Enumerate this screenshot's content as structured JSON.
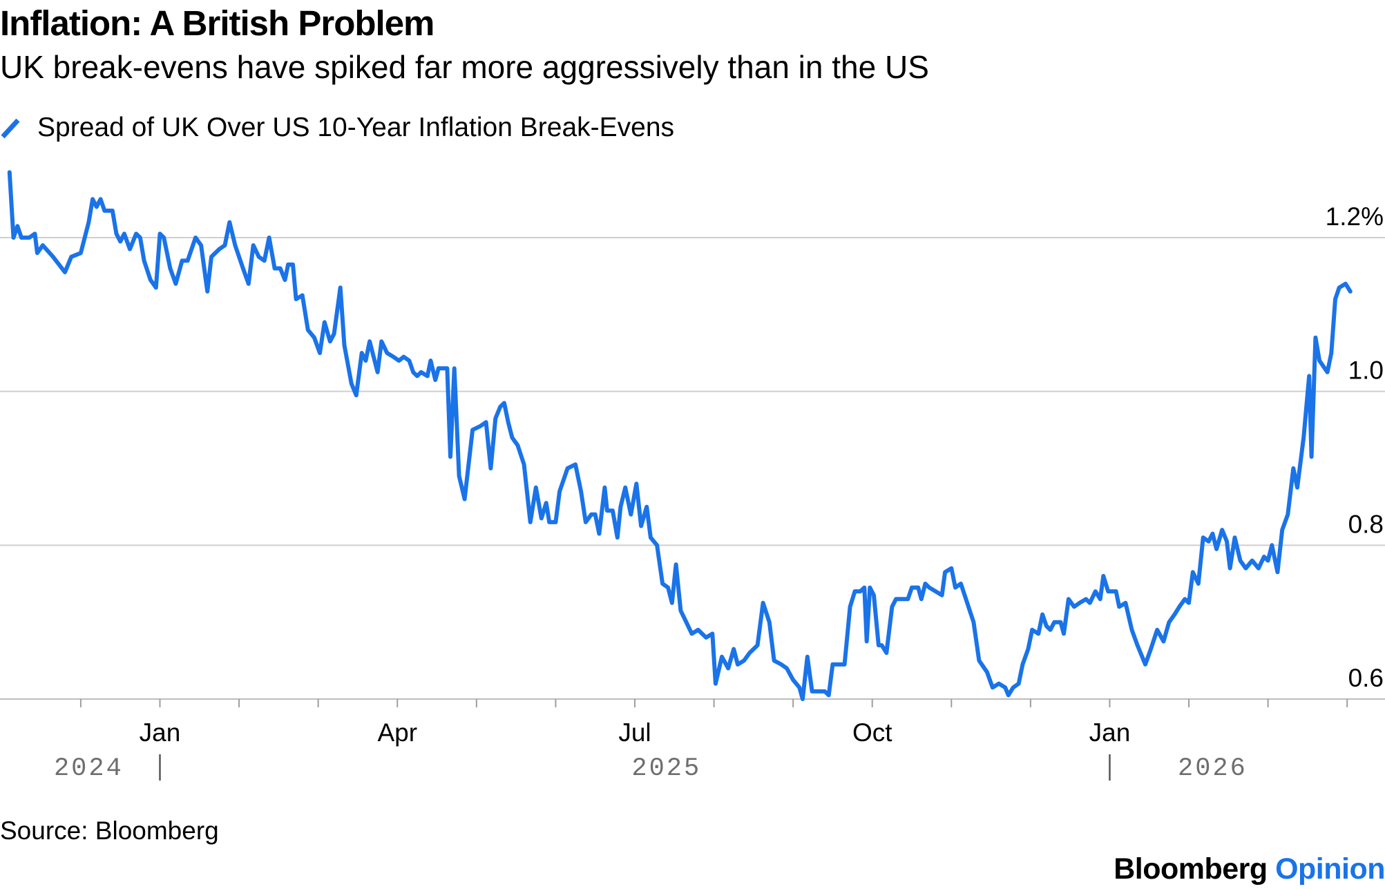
{
  "title": "Inflation: A British Problem",
  "subtitle": "UK break-evens have spiked far more aggressively than in the US",
  "legend": {
    "label": "Spread of UK Over US 10-Year Inflation Break-Evens",
    "color": "#1a73e8"
  },
  "source": "Source: Bloomberg",
  "brand": {
    "name": "Bloomberg",
    "suffix": "Opinion"
  },
  "chart_data": {
    "type": "line",
    "title": "Inflation: A British Problem",
    "subtitle": "UK break-evens have spiked far more aggressively than in the US",
    "xlabel": "",
    "ylabel": "",
    "ylim": [
      0.6,
      1.3
    ],
    "y_ticks": [
      {
        "value": 0.6,
        "label": "0.6"
      },
      {
        "value": 0.8,
        "label": "0.8"
      },
      {
        "value": 1.0,
        "label": "1.0"
      },
      {
        "value": 1.2,
        "label": "1.2%"
      }
    ],
    "x_range_months": [
      -1.9,
      26.4
    ],
    "x_minor_ticks_months": [
      -1,
      0,
      1,
      2,
      3,
      4,
      5,
      6,
      7,
      8,
      9,
      10,
      11,
      12,
      13,
      14,
      15,
      16,
      17,
      18,
      19,
      20,
      21,
      22,
      23,
      24,
      25,
      26
    ],
    "x_month_labels": [
      {
        "label": "Jan",
        "month": 0
      },
      {
        "label": "Apr",
        "month": 3
      },
      {
        "label": "Jul",
        "month": 6
      },
      {
        "label": "Oct",
        "month": 9
      },
      {
        "label": "Jan",
        "month": 12
      }
    ],
    "x_year_labels": [
      {
        "label": "2024",
        "month": -0.9
      },
      {
        "label": "2025",
        "month": 6.4
      },
      {
        "label": "2026",
        "month": 13.3
      }
    ],
    "x_year_separators_months": [
      0,
      12
    ],
    "grid": true,
    "legend_position": "top-left",
    "series": [
      {
        "name": "Spread of UK Over US 10-Year Inflation Break-Evens",
        "color": "#1a73e8",
        "points": [
          [
            -1.9,
            1.285
          ],
          [
            -1.85,
            1.2
          ],
          [
            -1.8,
            1.215
          ],
          [
            -1.75,
            1.2
          ],
          [
            -1.65,
            1.2
          ],
          [
            -1.58,
            1.205
          ],
          [
            -1.55,
            1.18
          ],
          [
            -1.48,
            1.19
          ],
          [
            -1.35,
            1.175
          ],
          [
            -1.2,
            1.155
          ],
          [
            -1.12,
            1.175
          ],
          [
            -1.0,
            1.18
          ],
          [
            -0.9,
            1.22
          ],
          [
            -0.85,
            1.25
          ],
          [
            -0.8,
            1.24
          ],
          [
            -0.75,
            1.25
          ],
          [
            -0.7,
            1.235
          ],
          [
            -0.6,
            1.235
          ],
          [
            -0.55,
            1.205
          ],
          [
            -0.5,
            1.195
          ],
          [
            -0.45,
            1.205
          ],
          [
            -0.38,
            1.185
          ],
          [
            -0.3,
            1.205
          ],
          [
            -0.25,
            1.2
          ],
          [
            -0.2,
            1.17
          ],
          [
            -0.12,
            1.145
          ],
          [
            -0.05,
            1.135
          ],
          [
            0.0,
            1.205
          ],
          [
            0.05,
            1.2
          ],
          [
            0.13,
            1.16
          ],
          [
            0.2,
            1.14
          ],
          [
            0.28,
            1.17
          ],
          [
            0.35,
            1.17
          ],
          [
            0.45,
            1.2
          ],
          [
            0.52,
            1.19
          ],
          [
            0.6,
            1.13
          ],
          [
            0.65,
            1.175
          ],
          [
            0.75,
            1.185
          ],
          [
            0.82,
            1.19
          ],
          [
            0.88,
            1.22
          ],
          [
            0.95,
            1.19
          ],
          [
            1.05,
            1.16
          ],
          [
            1.12,
            1.14
          ],
          [
            1.18,
            1.19
          ],
          [
            1.25,
            1.175
          ],
          [
            1.32,
            1.17
          ],
          [
            1.38,
            1.2
          ],
          [
            1.45,
            1.16
          ],
          [
            1.52,
            1.16
          ],
          [
            1.58,
            1.145
          ],
          [
            1.62,
            1.165
          ],
          [
            1.68,
            1.165
          ],
          [
            1.72,
            1.12
          ],
          [
            1.8,
            1.125
          ],
          [
            1.87,
            1.08
          ],
          [
            1.95,
            1.07
          ],
          [
            2.02,
            1.05
          ],
          [
            2.08,
            1.09
          ],
          [
            2.15,
            1.065
          ],
          [
            2.2,
            1.075
          ],
          [
            2.28,
            1.135
          ],
          [
            2.33,
            1.06
          ],
          [
            2.42,
            1.01
          ],
          [
            2.48,
            0.995
          ],
          [
            2.55,
            1.05
          ],
          [
            2.6,
            1.04
          ],
          [
            2.65,
            1.065
          ],
          [
            2.7,
            1.045
          ],
          [
            2.75,
            1.025
          ],
          [
            2.8,
            1.065
          ],
          [
            2.87,
            1.05
          ],
          [
            2.95,
            1.045
          ],
          [
            3.02,
            1.04
          ],
          [
            3.08,
            1.045
          ],
          [
            3.15,
            1.04
          ],
          [
            3.2,
            1.025
          ],
          [
            3.25,
            1.02
          ],
          [
            3.3,
            1.025
          ],
          [
            3.38,
            1.02
          ],
          [
            3.42,
            1.04
          ],
          [
            3.48,
            1.015
          ],
          [
            3.52,
            1.03
          ],
          [
            3.58,
            1.03
          ],
          [
            3.63,
            1.03
          ],
          [
            3.67,
            0.915
          ],
          [
            3.72,
            1.03
          ],
          [
            3.78,
            0.89
          ],
          [
            3.85,
            0.86
          ],
          [
            3.95,
            0.95
          ],
          [
            4.05,
            0.955
          ],
          [
            4.12,
            0.96
          ],
          [
            4.18,
            0.9
          ],
          [
            4.24,
            0.965
          ],
          [
            4.3,
            0.98
          ],
          [
            4.35,
            0.985
          ],
          [
            4.4,
            0.96
          ],
          [
            4.45,
            0.94
          ],
          [
            4.52,
            0.93
          ],
          [
            4.6,
            0.905
          ],
          [
            4.68,
            0.83
          ],
          [
            4.75,
            0.875
          ],
          [
            4.82,
            0.835
          ],
          [
            4.88,
            0.855
          ],
          [
            4.92,
            0.83
          ],
          [
            5.0,
            0.83
          ],
          [
            5.05,
            0.87
          ],
          [
            5.15,
            0.9
          ],
          [
            5.25,
            0.905
          ],
          [
            5.32,
            0.87
          ],
          [
            5.38,
            0.83
          ],
          [
            5.45,
            0.84
          ],
          [
            5.5,
            0.84
          ],
          [
            5.55,
            0.815
          ],
          [
            5.62,
            0.875
          ],
          [
            5.65,
            0.845
          ],
          [
            5.72,
            0.845
          ],
          [
            5.78,
            0.81
          ],
          [
            5.82,
            0.85
          ],
          [
            5.88,
            0.875
          ],
          [
            5.95,
            0.84
          ],
          [
            6.02,
            0.88
          ],
          [
            6.08,
            0.825
          ],
          [
            6.15,
            0.85
          ],
          [
            6.2,
            0.81
          ],
          [
            6.28,
            0.8
          ],
          [
            6.35,
            0.75
          ],
          [
            6.42,
            0.745
          ],
          [
            6.47,
            0.725
          ],
          [
            6.52,
            0.775
          ],
          [
            6.58,
            0.715
          ],
          [
            6.65,
            0.7
          ],
          [
            6.72,
            0.685
          ],
          [
            6.8,
            0.69
          ],
          [
            6.9,
            0.68
          ],
          [
            6.98,
            0.685
          ],
          [
            7.02,
            0.62
          ],
          [
            7.1,
            0.655
          ],
          [
            7.18,
            0.64
          ],
          [
            7.25,
            0.665
          ],
          [
            7.3,
            0.645
          ],
          [
            7.38,
            0.65
          ],
          [
            7.45,
            0.66
          ],
          [
            7.55,
            0.67
          ],
          [
            7.62,
            0.725
          ],
          [
            7.7,
            0.7
          ],
          [
            7.76,
            0.65
          ],
          [
            7.85,
            0.645
          ],
          [
            7.92,
            0.64
          ],
          [
            8.0,
            0.625
          ],
          [
            8.08,
            0.615
          ],
          [
            8.12,
            0.6
          ],
          [
            8.18,
            0.655
          ],
          [
            8.24,
            0.61
          ],
          [
            8.3,
            0.61
          ],
          [
            8.4,
            0.61
          ],
          [
            8.45,
            0.605
          ],
          [
            8.5,
            0.645
          ],
          [
            8.55,
            0.645
          ],
          [
            8.65,
            0.645
          ],
          [
            8.72,
            0.72
          ],
          [
            8.78,
            0.74
          ],
          [
            8.85,
            0.74
          ],
          [
            8.9,
            0.745
          ],
          [
            8.93,
            0.675
          ],
          [
            8.97,
            0.745
          ],
          [
            9.02,
            0.735
          ],
          [
            9.08,
            0.67
          ],
          [
            9.12,
            0.67
          ],
          [
            9.18,
            0.66
          ],
          [
            9.25,
            0.72
          ],
          [
            9.3,
            0.73
          ],
          [
            9.38,
            0.73
          ],
          [
            9.45,
            0.73
          ],
          [
            9.5,
            0.745
          ],
          [
            9.58,
            0.745
          ],
          [
            9.62,
            0.73
          ],
          [
            9.67,
            0.75
          ],
          [
            9.72,
            0.745
          ],
          [
            9.8,
            0.74
          ],
          [
            9.88,
            0.735
          ],
          [
            9.92,
            0.765
          ],
          [
            10.0,
            0.77
          ],
          [
            10.05,
            0.745
          ],
          [
            10.12,
            0.75
          ],
          [
            10.2,
            0.725
          ],
          [
            10.28,
            0.7
          ],
          [
            10.35,
            0.65
          ],
          [
            10.45,
            0.635
          ],
          [
            10.52,
            0.615
          ],
          [
            10.6,
            0.62
          ],
          [
            10.68,
            0.615
          ],
          [
            10.72,
            0.605
          ],
          [
            10.78,
            0.615
          ],
          [
            10.85,
            0.62
          ],
          [
            10.9,
            0.645
          ],
          [
            10.97,
            0.665
          ],
          [
            11.02,
            0.69
          ],
          [
            11.1,
            0.685
          ],
          [
            11.15,
            0.71
          ],
          [
            11.2,
            0.695
          ],
          [
            11.25,
            0.69
          ],
          [
            11.3,
            0.7
          ],
          [
            11.38,
            0.7
          ],
          [
            11.42,
            0.685
          ],
          [
            11.48,
            0.73
          ],
          [
            11.55,
            0.72
          ],
          [
            11.62,
            0.725
          ],
          [
            11.7,
            0.73
          ],
          [
            11.75,
            0.725
          ],
          [
            11.82,
            0.74
          ],
          [
            11.88,
            0.73
          ],
          [
            11.92,
            0.76
          ],
          [
            11.98,
            0.74
          ],
          [
            12.08,
            0.74
          ],
          [
            12.12,
            0.72
          ],
          [
            12.2,
            0.725
          ],
          [
            12.28,
            0.69
          ],
          [
            12.35,
            0.67
          ],
          [
            12.45,
            0.645
          ],
          [
            12.52,
            0.665
          ],
          [
            12.6,
            0.69
          ],
          [
            12.68,
            0.675
          ],
          [
            12.75,
            0.7
          ],
          [
            12.82,
            0.71
          ],
          [
            12.88,
            0.72
          ],
          [
            12.95,
            0.73
          ],
          [
            13.0,
            0.725
          ],
          [
            13.05,
            0.765
          ],
          [
            13.12,
            0.75
          ],
          [
            13.18,
            0.81
          ],
          [
            13.25,
            0.805
          ],
          [
            13.3,
            0.815
          ],
          [
            13.35,
            0.795
          ],
          [
            13.42,
            0.82
          ],
          [
            13.48,
            0.805
          ],
          [
            13.52,
            0.77
          ],
          [
            13.58,
            0.81
          ],
          [
            13.65,
            0.78
          ],
          [
            13.72,
            0.77
          ],
          [
            13.8,
            0.78
          ],
          [
            13.88,
            0.77
          ],
          [
            13.95,
            0.785
          ],
          [
            14.0,
            0.78
          ],
          [
            14.05,
            0.8
          ],
          [
            14.12,
            0.765
          ],
          [
            14.18,
            0.82
          ],
          [
            14.25,
            0.84
          ],
          [
            14.32,
            0.9
          ],
          [
            14.37,
            0.875
          ],
          [
            14.45,
            0.94
          ],
          [
            14.52,
            1.02
          ],
          [
            14.55,
            0.915
          ],
          [
            14.6,
            1.07
          ],
          [
            14.65,
            1.04
          ],
          [
            14.75,
            1.025
          ],
          [
            14.8,
            1.05
          ],
          [
            14.85,
            1.12
          ],
          [
            14.9,
            1.135
          ],
          [
            14.98,
            1.14
          ],
          [
            15.04,
            1.13
          ]
        ]
      }
    ]
  }
}
